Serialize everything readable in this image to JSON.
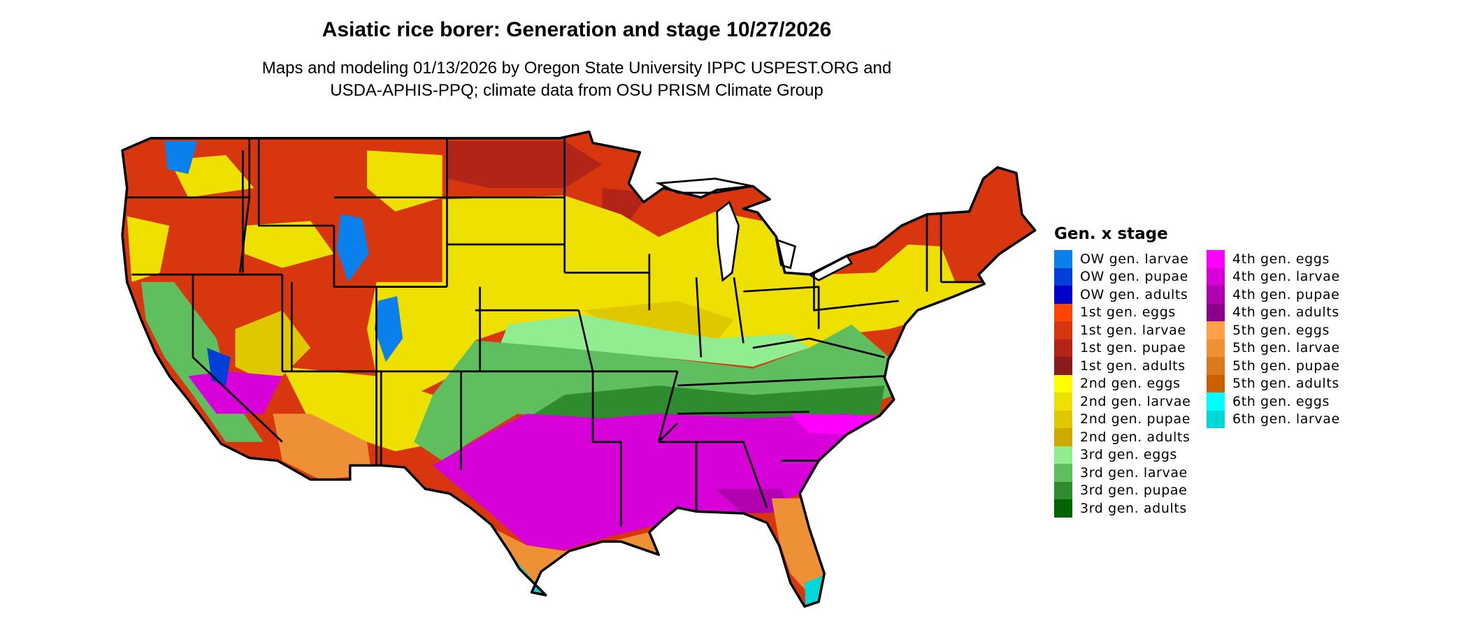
{
  "title": "Asiatic rice borer: Generation and stage 10/27/2026",
  "subtitle_lines": [
    "Maps and modeling 01/13/2026 by Oregon State University IPPC USPEST.ORG and",
    "USDA-APHIS-PPQ; climate data from OSU PRISM Climate Group"
  ],
  "legend": {
    "title": "Gen. x stage",
    "columns": [
      [
        {
          "label": "OW gen. larvae",
          "color": "#0a80ec"
        },
        {
          "label": "OW gen. pupae",
          "color": "#0040d8"
        },
        {
          "label": "OW gen. adults",
          "color": "#0000c8"
        },
        {
          "label": "1st gen. eggs",
          "color": "#ff4500"
        },
        {
          "label": "1st gen. larvae",
          "color": "#d8360e"
        },
        {
          "label": "1st gen. pupae",
          "color": "#b22418"
        },
        {
          "label": "1st gen. adults",
          "color": "#8b1a1a"
        },
        {
          "label": "2nd gen. eggs",
          "color": "#ffff00"
        },
        {
          "label": "2nd gen. larvae",
          "color": "#eee000"
        },
        {
          "label": "2nd gen. pupae",
          "color": "#dfc800"
        },
        {
          "label": "2nd gen. adults",
          "color": "#cdaa00"
        },
        {
          "label": "3rd gen. eggs",
          "color": "#90ee90"
        },
        {
          "label": "3rd gen. larvae",
          "color": "#5fbf5f"
        },
        {
          "label": "3rd gen. pupae",
          "color": "#2e8b2e"
        },
        {
          "label": "3rd gen. adults",
          "color": "#006400"
        }
      ],
      [
        {
          "label": "4th gen. eggs",
          "color": "#ff00ff"
        },
        {
          "label": "4th gen. larvae",
          "color": "#d800d8"
        },
        {
          "label": "4th gen. pupae",
          "color": "#b000b0"
        },
        {
          "label": "4th gen. adults",
          "color": "#8b008b"
        },
        {
          "label": "5th gen. eggs",
          "color": "#ffa04a"
        },
        {
          "label": "5th gen. larvae",
          "color": "#ee9035"
        },
        {
          "label": "5th gen. pupae",
          "color": "#dc781e"
        },
        {
          "label": "5th gen. adults",
          "color": "#cc6000"
        },
        {
          "label": "6th gen. eggs",
          "color": "#00ffff"
        },
        {
          "label": "6th gen. larvae",
          "color": "#00d8d8"
        }
      ]
    ]
  }
}
